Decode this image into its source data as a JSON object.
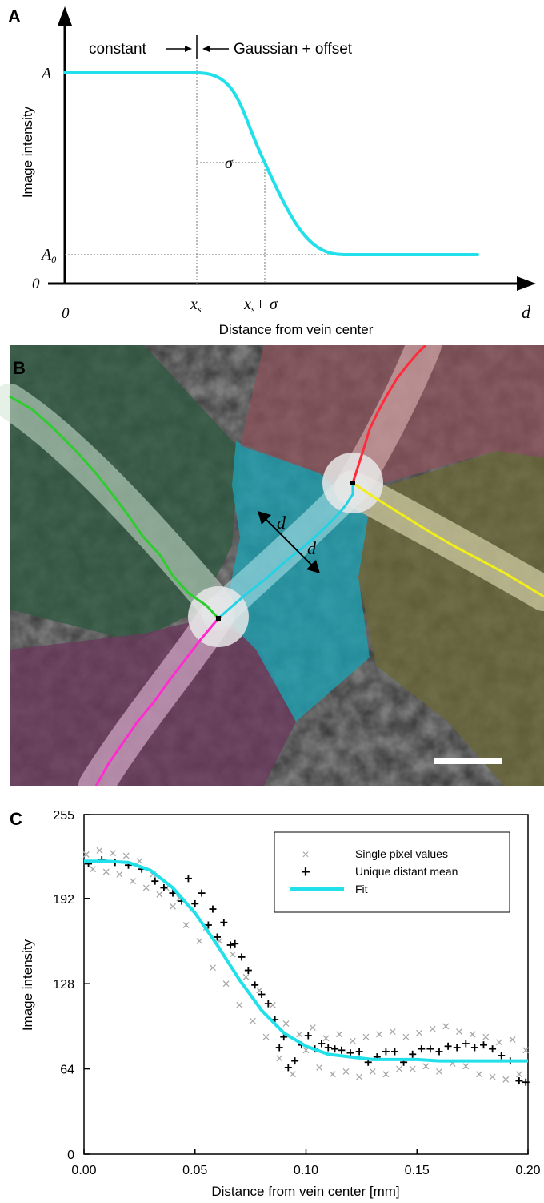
{
  "panel_a": {
    "label": "A",
    "annotation_left": "constant",
    "annotation_right": "Gaussian + offset",
    "y_label": "Image intensity",
    "x_label": "Distance from vein center",
    "y_tick_A": "A",
    "y_tick_A0_main": "A",
    "y_tick_A0_sub": "0",
    "y_zero": "0",
    "x_zero": "0",
    "x_tick_xs_main": "x",
    "x_tick_xs_sub": "s",
    "x_tick_xs_sigma_main": "x",
    "x_tick_xs_sigma_sub": "s",
    "x_tick_xs_sigma_tail": "+ σ",
    "sigma_label": "σ",
    "x_axis_end": "d",
    "curve_color": "#22e0ea"
  },
  "panel_b": {
    "label": "B",
    "d_label_1": "d",
    "d_label_2": "d",
    "segment_colors": {
      "green": "#2ecc2e",
      "cyan": "#22d3e6",
      "red": "#ff2a3a",
      "yellow": "#f2ee1a",
      "magenta": "#ff2ad0"
    }
  },
  "panel_c": {
    "label": "C",
    "y_label": "Image intensity",
    "x_label": "Distance from vein center [mm]",
    "legend": {
      "single": "Single pixel values",
      "mean": "Unique distant mean",
      "fit": "Fit"
    },
    "colors": {
      "single": "#a8a8a8",
      "mean": "#000000",
      "fit": "#22e0ea"
    }
  },
  "chart_data": {
    "type": "scatter",
    "xlabel": "Distance from vein center [mm]",
    "ylabel": "Image intensity",
    "xlim": [
      0,
      0.2
    ],
    "ylim": [
      0,
      255
    ],
    "x_ticks": [
      "0.00",
      "0.05",
      "0.10",
      "0.15",
      "0.20"
    ],
    "y_ticks": [
      "0",
      "64",
      "128",
      "192",
      "255"
    ],
    "legend_position": "top-right",
    "series": [
      {
        "name": "Fit",
        "type": "line",
        "x": [
          0.0,
          0.01,
          0.02,
          0.03,
          0.04,
          0.05,
          0.06,
          0.07,
          0.08,
          0.09,
          0.1,
          0.11,
          0.12,
          0.13,
          0.14,
          0.15,
          0.16,
          0.17,
          0.18,
          0.19,
          0.2
        ],
        "y": [
          220,
          220,
          219,
          213,
          200,
          181,
          157,
          131,
          108,
          91,
          81,
          75,
          73,
          71,
          71,
          71,
          70,
          70,
          70,
          70,
          70
        ]
      },
      {
        "name": "Unique distant mean",
        "type": "scatter",
        "x": [
          0.002,
          0.008,
          0.014,
          0.02,
          0.026,
          0.032,
          0.036,
          0.04,
          0.044,
          0.047,
          0.05,
          0.053,
          0.056,
          0.058,
          0.06,
          0.063,
          0.066,
          0.068,
          0.071,
          0.074,
          0.077,
          0.08,
          0.083,
          0.086,
          0.088,
          0.09,
          0.092,
          0.095,
          0.098,
          0.101,
          0.104,
          0.107,
          0.11,
          0.113,
          0.116,
          0.12,
          0.124,
          0.128,
          0.132,
          0.136,
          0.14,
          0.144,
          0.148,
          0.152,
          0.156,
          0.16,
          0.164,
          0.168,
          0.172,
          0.176,
          0.18,
          0.184,
          0.188,
          0.192,
          0.196,
          0.199
        ],
        "y": [
          218,
          221,
          219,
          217,
          214,
          205,
          200,
          196,
          190,
          207,
          188,
          196,
          172,
          184,
          163,
          174,
          157,
          158,
          148,
          138,
          127,
          120,
          113,
          101,
          80,
          88,
          65,
          70,
          82,
          89,
          79,
          83,
          80,
          79,
          78,
          76,
          77,
          69,
          73,
          77,
          77,
          69,
          75,
          79,
          79,
          77,
          81,
          80,
          83,
          80,
          82,
          79,
          74,
          70,
          55,
          54
        ]
      },
      {
        "name": "Single pixel values",
        "type": "scatter",
        "x": [
          0.001,
          0.004,
          0.007,
          0.01,
          0.013,
          0.016,
          0.019,
          0.022,
          0.025,
          0.028,
          0.031,
          0.034,
          0.037,
          0.04,
          0.043,
          0.046,
          0.049,
          0.052,
          0.055,
          0.058,
          0.061,
          0.064,
          0.067,
          0.07,
          0.073,
          0.076,
          0.079,
          0.082,
          0.085,
          0.088,
          0.091,
          0.094,
          0.097,
          0.1,
          0.103,
          0.106,
          0.109,
          0.112,
          0.115,
          0.118,
          0.121,
          0.124,
          0.127,
          0.13,
          0.133,
          0.136,
          0.139,
          0.142,
          0.145,
          0.148,
          0.151,
          0.154,
          0.157,
          0.16,
          0.163,
          0.166,
          0.169,
          0.172,
          0.175,
          0.178,
          0.181,
          0.184,
          0.187,
          0.19,
          0.193,
          0.196,
          0.199
        ],
        "y": [
          225,
          214,
          228,
          212,
          226,
          210,
          224,
          205,
          220,
          200,
          210,
          195,
          200,
          186,
          192,
          172,
          184,
          160,
          170,
          140,
          160,
          128,
          150,
          112,
          133,
          100,
          123,
          88,
          112,
          72,
          98,
          60,
          90,
          78,
          95,
          65,
          87,
          60,
          90,
          62,
          85,
          58,
          88,
          62,
          90,
          60,
          92,
          64,
          88,
          64,
          91,
          66,
          94,
          62,
          96,
          68,
          92,
          66,
          90,
          60,
          88,
          58,
          84,
          56,
          86,
          60,
          78
        ]
      }
    ]
  }
}
